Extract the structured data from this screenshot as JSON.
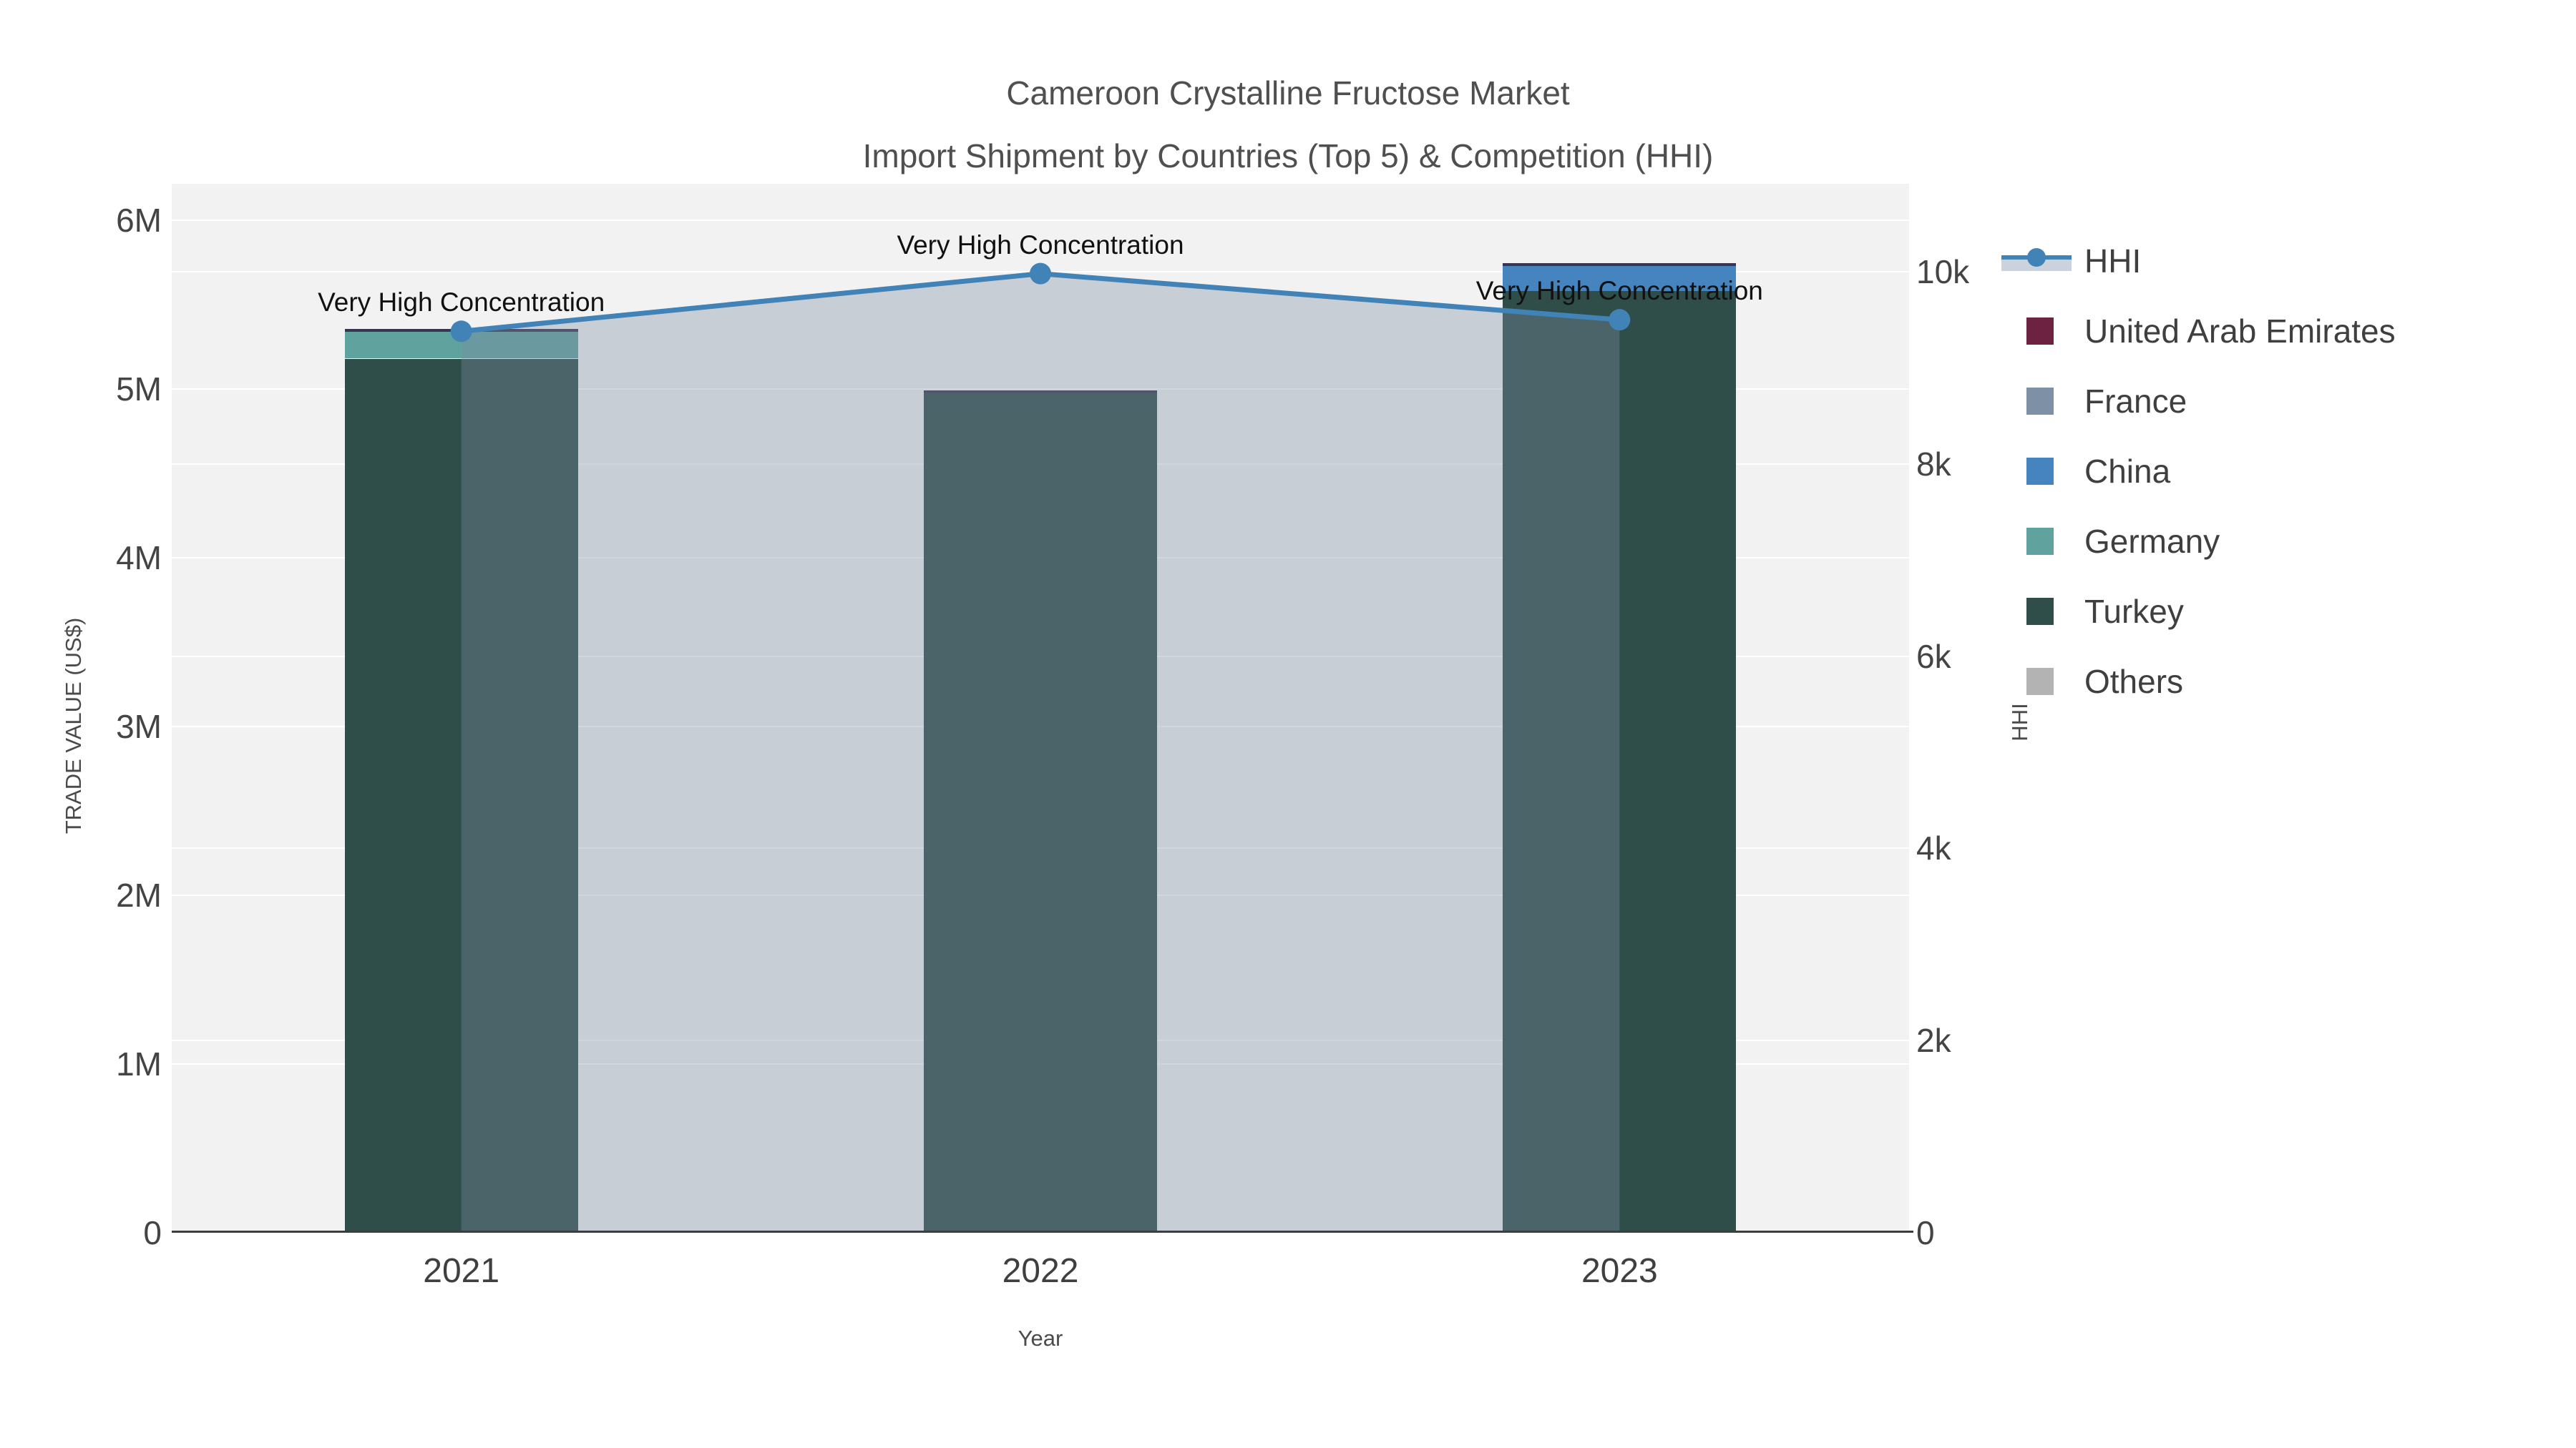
{
  "title": {
    "line1": "Cameroon Crystalline Fructose Market",
    "line2": "Import Shipment by Countries (Top 5) & Competition (HHI)"
  },
  "legend": {
    "items": [
      {
        "label": "HHI",
        "type": "line",
        "color": "#4182B7",
        "fill_swatch": "#CBD2DB"
      },
      {
        "label": "United Arab Emirates",
        "type": "bar",
        "color": "#6E2242"
      },
      {
        "label": "France",
        "type": "bar",
        "color": "#7E90A5"
      },
      {
        "label": "China",
        "type": "bar",
        "color": "#4584BE"
      },
      {
        "label": "Germany",
        "type": "bar",
        "color": "#60A29E"
      },
      {
        "label": "Turkey",
        "type": "bar",
        "color": "#2F4D49"
      },
      {
        "label": "Others",
        "type": "bar",
        "color": "#B3B3B3"
      }
    ]
  },
  "chart_data": {
    "type": "bar+line",
    "bar_mode": "stack",
    "title": "Cameroon Crystalline Fructose Market — Import Shipment by Countries (Top 5) & Competition (HHI)",
    "x": {
      "label": "Year",
      "categories": [
        "2021",
        "2022",
        "2023"
      ]
    },
    "y_left": {
      "label": "TRADE VALUE (US$)",
      "ticks": [
        "0",
        "1M",
        "2M",
        "3M",
        "4M",
        "5M",
        "6M"
      ],
      "tick_values": [
        0,
        1000000,
        2000000,
        3000000,
        4000000,
        5000000,
        6000000
      ],
      "range": [
        0,
        6216000
      ]
    },
    "y_right": {
      "label": "HHI",
      "ticks": [
        "0",
        "2k",
        "4k",
        "6k",
        "8k",
        "10k"
      ],
      "tick_values": [
        0,
        2000,
        4000,
        6000,
        8000,
        10000
      ],
      "range": [
        0,
        10915
      ]
    },
    "bar_series": [
      {
        "name": "United Arab Emirates",
        "color": "#6E2242",
        "bar_color": "#3A3450",
        "values": [
          15000,
          10000,
          15000
        ]
      },
      {
        "name": "France",
        "color": "#7E90A5",
        "values": [
          0,
          0,
          0
        ]
      },
      {
        "name": "China",
        "color": "#4584BE",
        "values": [
          0,
          0,
          150000
        ]
      },
      {
        "name": "Germany",
        "color": "#60A29E",
        "values": [
          160000,
          0,
          0
        ]
      },
      {
        "name": "Turkey",
        "color": "#2F4D49",
        "values": [
          5180000,
          4980000,
          5580000
        ]
      },
      {
        "name": "Others",
        "color": "#B3B3B3",
        "values": [
          0,
          0,
          0
        ]
      }
    ],
    "bar_totals": [
      5355000,
      4990000,
      5745000
    ],
    "line_series": {
      "name": "HHI",
      "axis": "right",
      "color": "#4182B7",
      "fill": "tozeroy",
      "fill_color": "rgba(126,142,163,0.36)",
      "marker": "circle",
      "values": [
        9380,
        9980,
        9500
      ]
    },
    "annotations": [
      {
        "text": "Very High Concentration",
        "x": "2021"
      },
      {
        "text": "Very High Concentration",
        "x": "2022"
      },
      {
        "text": "Very High Concentration",
        "x": "2023"
      }
    ],
    "layout_hints": {
      "grid": true,
      "legend_position": "right",
      "plot_background": "#F2F2F2"
    }
  }
}
